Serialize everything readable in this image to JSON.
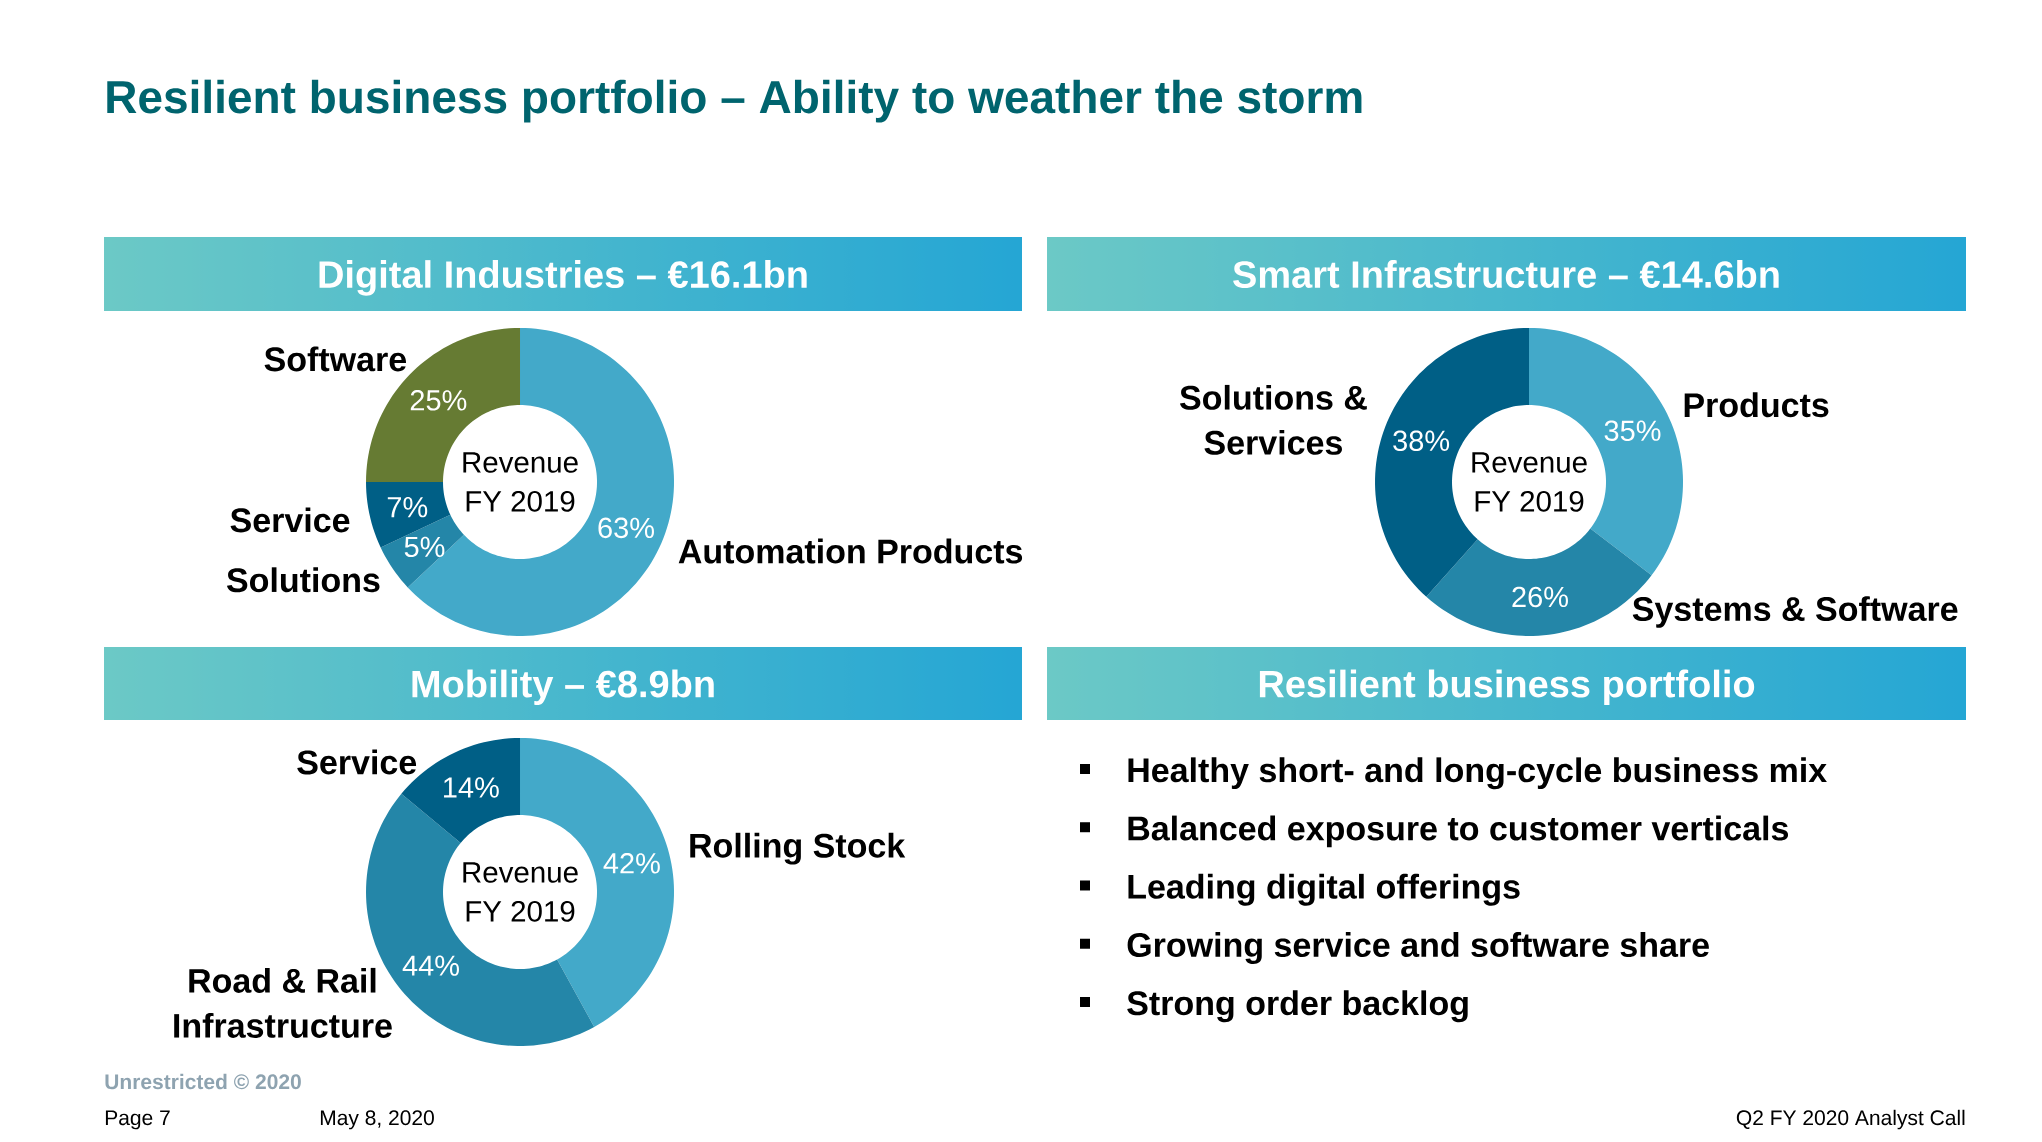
{
  "chart_data": [
    {
      "type": "other",
      "title": "Resilient business portfolio – Ability to weather the storm",
      "annotations": [
        "Unrestricted © 2020",
        "Page 7",
        "May 8, 2020",
        "Q2 FY 2020 Analyst Call"
      ]
    },
    {
      "type": "donut",
      "title": "Digital Industries – €16.1bn",
      "categories": [
        "Automation Products",
        "Solutions",
        "Service",
        "Software"
      ],
      "values": [
        63,
        5,
        7,
        25
      ],
      "colors": [
        "#43a9c9",
        "#2486a8",
        "#005f86",
        "#667b33"
      ],
      "value_labels": [
        "63%",
        "5%",
        "7%",
        "25%"
      ],
      "annotations": [
        "Revenue FY 2019"
      ]
    },
    {
      "type": "donut",
      "title": "Smart Infrastructure – €14.6bn",
      "categories": [
        "Products",
        "Systems & Software",
        "Solutions & Services"
      ],
      "values": [
        35,
        26,
        38
      ],
      "colors": [
        "#43a9c9",
        "#2486a8",
        "#005f86"
      ],
      "value_labels": [
        "35%",
        "26%",
        "38%"
      ],
      "annotations": [
        "Revenue FY 2019"
      ]
    },
    {
      "type": "donut",
      "title": "Mobility – €8.9bn",
      "categories": [
        "Rolling Stock",
        "Road & Rail Infrastructure",
        "Service"
      ],
      "values": [
        42,
        44,
        14
      ],
      "colors": [
        "#43a9c9",
        "#2486a8",
        "#005f86"
      ],
      "value_labels": [
        "42%",
        "44%",
        "14%"
      ],
      "annotations": [
        "Revenue FY 2019"
      ]
    },
    {
      "type": "other",
      "title": "Resilient business portfolio",
      "annotations": [
        "Healthy short- and long-cycle business mix",
        "Balanced exposure to customer verticals",
        "Leading digital offerings",
        "Growing service and software share",
        "Strong order backlog"
      ]
    }
  ]
}
